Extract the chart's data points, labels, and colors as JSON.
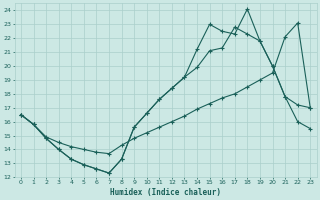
{
  "xlabel": "Humidex (Indice chaleur)",
  "bg_color": "#cce8e4",
  "grid_color": "#aacfcb",
  "line_color": "#1a6059",
  "xlim": [
    -0.5,
    23.5
  ],
  "ylim": [
    12,
    24.5
  ],
  "xticks": [
    0,
    1,
    2,
    3,
    4,
    5,
    6,
    7,
    8,
    9,
    10,
    11,
    12,
    13,
    14,
    15,
    16,
    17,
    18,
    19,
    20,
    21,
    22,
    23
  ],
  "yticks": [
    12,
    13,
    14,
    15,
    16,
    17,
    18,
    19,
    20,
    21,
    22,
    23,
    24
  ],
  "series_upper_x": [
    0,
    1,
    2,
    3,
    4,
    5,
    6,
    7,
    8,
    9,
    10,
    11,
    12,
    13,
    14,
    15,
    16,
    17,
    18,
    19,
    20,
    21,
    22,
    23
  ],
  "series_upper_y": [
    16.5,
    15.8,
    14.8,
    14.0,
    13.3,
    12.9,
    12.6,
    12.3,
    13.3,
    15.6,
    16.6,
    17.6,
    18.4,
    19.2,
    21.2,
    23.0,
    22.5,
    22.3,
    24.1,
    21.8,
    20.0,
    17.8,
    16.0,
    15.5
  ],
  "series_mid_x": [
    0,
    1,
    2,
    3,
    4,
    5,
    6,
    7,
    8,
    9,
    10,
    11,
    12,
    13,
    14,
    15,
    16,
    17,
    18,
    19,
    20,
    21,
    22,
    23
  ],
  "series_mid_y": [
    16.5,
    15.8,
    14.8,
    14.0,
    13.3,
    12.9,
    12.6,
    12.3,
    13.3,
    15.6,
    16.6,
    17.6,
    18.4,
    19.2,
    19.9,
    21.1,
    21.3,
    22.8,
    22.3,
    21.8,
    20.0,
    17.8,
    17.2,
    17.0
  ],
  "series_low_x": [
    0,
    1,
    2,
    3,
    4,
    5,
    6,
    7,
    8,
    9,
    10,
    11,
    12,
    13,
    14,
    15,
    16,
    17,
    18,
    19,
    20,
    21,
    22,
    23
  ],
  "series_low_y": [
    16.5,
    15.8,
    14.9,
    14.5,
    14.2,
    14.0,
    13.8,
    13.7,
    14.3,
    14.8,
    15.2,
    15.6,
    16.0,
    16.4,
    16.9,
    17.3,
    17.7,
    18.0,
    18.5,
    19.0,
    19.5,
    22.1,
    23.1,
    17.0
  ]
}
